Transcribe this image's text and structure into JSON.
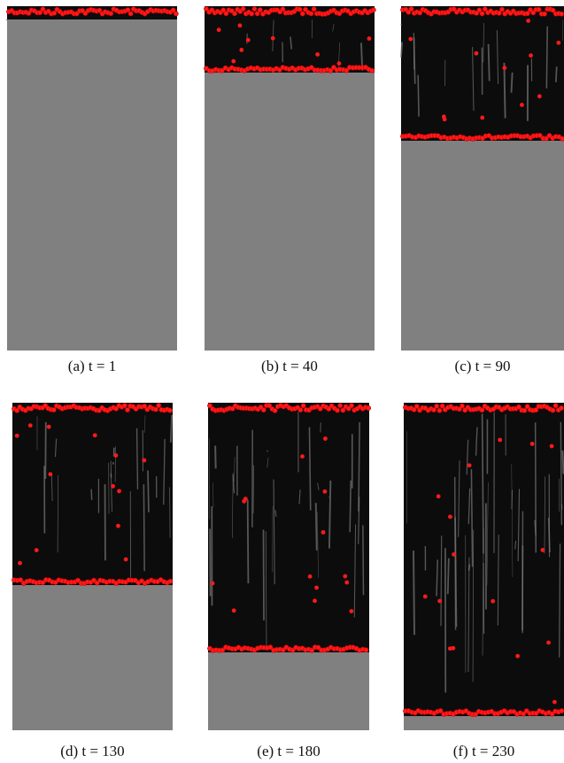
{
  "figure": {
    "panels": [
      {
        "caption": "(a) t = 1"
      },
      {
        "caption": "(b) t = 40"
      },
      {
        "caption": "(c) t = 90"
      },
      {
        "caption": "(d) t = 130"
      },
      {
        "caption": "(e) t = 180"
      },
      {
        "caption": "(f) t = 230"
      }
    ]
  }
}
